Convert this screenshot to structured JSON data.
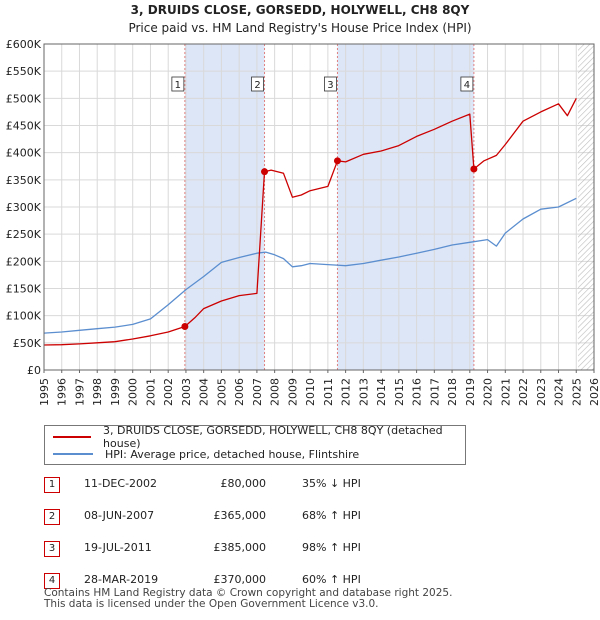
{
  "chart_data": {
    "type": "line",
    "title": "3, DRUIDS CLOSE, GORSEDD, HOLYWELL, CH8 8QY",
    "subtitle": "Price paid vs. HM Land Registry's House Price Index (HPI)",
    "xlim": [
      1995,
      2026
    ],
    "ylim": [
      0,
      600000
    ],
    "x_ticks": [
      "1995",
      "1996",
      "1997",
      "1998",
      "1999",
      "2000",
      "2001",
      "2002",
      "2003",
      "2004",
      "2005",
      "2006",
      "2007",
      "2008",
      "2009",
      "2010",
      "2011",
      "2012",
      "2013",
      "2014",
      "2015",
      "2016",
      "2017",
      "2018",
      "2019",
      "2020",
      "2021",
      "2022",
      "2023",
      "2024",
      "2025",
      "2026"
    ],
    "y_ticks": [
      {
        "value": 0,
        "label": "£0"
      },
      {
        "value": 50000,
        "label": "£50K"
      },
      {
        "value": 100000,
        "label": "£100K"
      },
      {
        "value": 150000,
        "label": "£150K"
      },
      {
        "value": 200000,
        "label": "£200K"
      },
      {
        "value": 250000,
        "label": "£250K"
      },
      {
        "value": 300000,
        "label": "£300K"
      },
      {
        "value": 350000,
        "label": "£350K"
      },
      {
        "value": 400000,
        "label": "£400K"
      },
      {
        "value": 450000,
        "label": "£450K"
      },
      {
        "value": 500000,
        "label": "£500K"
      },
      {
        "value": 550000,
        "label": "£550K"
      },
      {
        "value": 600000,
        "label": "£600K"
      }
    ],
    "series": [
      {
        "name": "3, DRUIDS CLOSE, GORSEDD, HOLYWELL, CH8 8QY (detached house)",
        "color": "#cc0000",
        "x": [
          1995.0,
          1996.0,
          1997.0,
          1998.0,
          1999.0,
          2000.0,
          2001.0,
          2002.0,
          2002.94,
          2003.5,
          2004.0,
          2005.0,
          2006.0,
          2007.0,
          2007.43,
          2007.8,
          2008.5,
          2009.0,
          2009.5,
          2010.0,
          2011.0,
          2011.54,
          2012.0,
          2013.0,
          2014.0,
          2015.0,
          2016.0,
          2017.0,
          2018.0,
          2019.0,
          2019.23,
          2019.8,
          2020.5,
          2021.0,
          2022.0,
          2023.0,
          2024.0,
          2024.5,
          2025.0
        ],
        "y": [
          46000,
          46500,
          48000,
          50000,
          52000,
          57000,
          63000,
          70000,
          80000,
          96000,
          113000,
          127000,
          137000,
          141000,
          365000,
          368000,
          362000,
          318000,
          322000,
          330000,
          338000,
          385000,
          383000,
          397000,
          403000,
          413000,
          430000,
          443000,
          458000,
          471000,
          370000,
          385000,
          395000,
          415000,
          458000,
          475000,
          490000,
          468000,
          500000
        ]
      },
      {
        "name": "HPI: Average price, detached house, Flintshire",
        "color": "#5b8ecf",
        "x": [
          1995.0,
          1996.0,
          1997.0,
          1998.0,
          1999.0,
          2000.0,
          2001.0,
          2002.0,
          2003.0,
          2004.0,
          2005.0,
          2006.0,
          2007.0,
          2007.5,
          2008.0,
          2008.5,
          2009.0,
          2009.5,
          2010.0,
          2011.0,
          2011.5,
          2012.0,
          2013.0,
          2014.0,
          2015.0,
          2016.0,
          2017.0,
          2018.0,
          2019.0,
          2020.0,
          2020.5,
          2021.0,
          2022.0,
          2023.0,
          2024.0,
          2025.0
        ],
        "y": [
          68000,
          70000,
          73000,
          76000,
          79000,
          84000,
          94000,
          120000,
          148000,
          172000,
          198000,
          207000,
          215000,
          217000,
          212000,
          205000,
          190000,
          192000,
          196000,
          194000,
          193000,
          192000,
          196000,
          202000,
          208000,
          215000,
          222000,
          230000,
          235000,
          240000,
          228000,
          252000,
          278000,
          296000,
          300000,
          316000
        ]
      }
    ],
    "sales": [
      {
        "num": "1",
        "x": 2002.94,
        "price": 80000
      },
      {
        "num": "2",
        "x": 2007.43,
        "price": 365000
      },
      {
        "num": "3",
        "x": 2011.54,
        "price": 385000
      },
      {
        "num": "4",
        "x": 2019.23,
        "price": 370000
      }
    ],
    "shaded_ranges": [
      [
        2002.94,
        2007.43
      ],
      [
        2011.54,
        2019.23
      ]
    ],
    "forecast_from": 2025.1,
    "grid": true
  },
  "legend": {
    "price_paid": "3, DRUIDS CLOSE, GORSEDD, HOLYWELL, CH8 8QY (detached house)",
    "hpi": "HPI: Average price, detached house, Flintshire"
  },
  "sales_table": [
    {
      "num": "1",
      "date": "11-DEC-2002",
      "price": "£80,000",
      "hpi": "35% ↓ HPI"
    },
    {
      "num": "2",
      "date": "08-JUN-2007",
      "price": "£365,000",
      "hpi": "68% ↑ HPI"
    },
    {
      "num": "3",
      "date": "19-JUL-2011",
      "price": "£385,000",
      "hpi": "98% ↑ HPI"
    },
    {
      "num": "4",
      "date": "28-MAR-2019",
      "price": "£370,000",
      "hpi": "60% ↑ HPI"
    }
  ],
  "footer": {
    "line1": "Contains HM Land Registry data © Crown copyright and database right 2025.",
    "line2": "This data is licensed under the Open Government Licence v3.0."
  },
  "colors": {
    "price_line": "#cc0000",
    "hpi_line": "#5b8ecf",
    "shade": "#dde6f7",
    "grid": "#d9d9d9"
  }
}
